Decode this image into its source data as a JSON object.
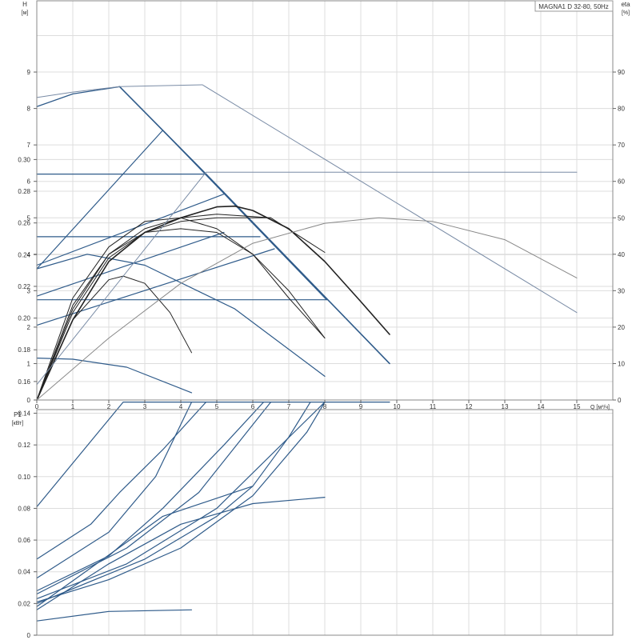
{
  "chart_data": [
    {
      "type": "line",
      "title": "MAGNA1 D 32-80, 50Hz",
      "xlabel": "Q [м³/ч]",
      "ylabel_top": "H",
      "ylabel_unit": "[м]",
      "y2label_top": "eta",
      "y2label_unit": "[%]",
      "xlim": [
        0,
        16
      ],
      "ylim": [
        0,
        10.5
      ],
      "y2lim": [
        0,
        100
      ],
      "x_ticks": [
        "0",
        "1",
        "2",
        "3",
        "4",
        "5",
        "6",
        "7",
        "8",
        "9",
        "10",
        "11",
        "12",
        "13",
        "14",
        "15"
      ],
      "y_ticks": [
        "0",
        "1",
        "2",
        "3",
        "4",
        "5",
        "6",
        "7",
        "8",
        "9"
      ],
      "y2_ticks": [
        "0",
        "10",
        "20",
        "30",
        "40",
        "50",
        "60",
        "70",
        "80",
        "90"
      ],
      "grid": true,
      "series": [
        {
          "kind": "head",
          "color": "#2f5b8a",
          "width": 1.3,
          "points": [
            [
              0,
              8.05
            ],
            [
              1,
              8.4
            ],
            [
              2.3,
              8.6
            ]
          ]
        },
        {
          "kind": "head",
          "color": "#2f5b8a",
          "width": 1.6,
          "points": [
            [
              2.3,
              8.6
            ],
            [
              4.7,
              6.2
            ],
            [
              9.8,
              1.0
            ]
          ]
        },
        {
          "kind": "head",
          "color": "#7a8ca6",
          "width": 1.0,
          "points": [
            [
              0,
              8.3
            ],
            [
              1,
              8.45
            ],
            [
              2.3,
              8.6
            ],
            [
              4.6,
              8.65
            ]
          ]
        },
        {
          "kind": "head",
          "color": "#7a8ca6",
          "width": 1.0,
          "points": [
            [
              4.6,
              8.65
            ],
            [
              15,
              2.4
            ]
          ]
        },
        {
          "kind": "head",
          "color": "#2f5b8a",
          "width": 1.2,
          "points": [
            [
              0,
              6.2
            ],
            [
              4.7,
              6.2
            ]
          ]
        },
        {
          "kind": "head",
          "color": "#2f5b8a",
          "width": 1.2,
          "points": [
            [
              0,
              3.6
            ],
            [
              3.5,
              7.4
            ]
          ]
        },
        {
          "kind": "head",
          "color": "#2f5b8a",
          "width": 1.2,
          "points": [
            [
              3.5,
              7.4
            ],
            [
              8.05,
              2.75
            ]
          ]
        },
        {
          "kind": "head",
          "color": "#2f5b8a",
          "width": 1.2,
          "points": [
            [
              0,
              4.48
            ],
            [
              6.2,
              4.48
            ]
          ]
        },
        {
          "kind": "head",
          "color": "#2f5b8a",
          "width": 1.2,
          "points": [
            [
              0,
              2.75
            ],
            [
              8.05,
              2.75
            ]
          ]
        },
        {
          "kind": "head",
          "color": "#2f5b8a",
          "width": 1.2,
          "points": [
            [
              0,
              3.7
            ],
            [
              5.2,
              5.65
            ]
          ]
        },
        {
          "kind": "head",
          "color": "#2f5b8a",
          "width": 1.2,
          "points": [
            [
              0,
              2.85
            ],
            [
              5.2,
              4.6
            ]
          ]
        },
        {
          "kind": "head",
          "color": "#2f5b8a",
          "width": 1.2,
          "points": [
            [
              0,
              2.05
            ],
            [
              6.6,
              4.15
            ]
          ]
        },
        {
          "kind": "head",
          "color": "#2f5b8a",
          "width": 1.2,
          "points": [
            [
              0,
              3.6
            ],
            [
              1.4,
              4.0
            ],
            [
              3,
              3.7
            ],
            [
              5.5,
              2.5
            ],
            [
              8,
              0.65
            ]
          ]
        },
        {
          "kind": "head",
          "color": "#2f5b8a",
          "width": 1.2,
          "points": [
            [
              0,
              1.15
            ],
            [
              1,
              1.12
            ],
            [
              2.5,
              0.9
            ],
            [
              4.3,
              0.2
            ]
          ]
        },
        {
          "kind": "eta",
          "color": "#222222",
          "width": 1.6,
          "points": [
            [
              0,
              0
            ],
            [
              1,
              22
            ],
            [
              2,
              38
            ],
            [
              3,
              46
            ],
            [
              4,
              50
            ],
            [
              5,
              53
            ],
            [
              5.5,
              53.2
            ],
            [
              6,
              52
            ],
            [
              7,
              47
            ],
            [
              8,
              38
            ],
            [
              9,
              27
            ],
            [
              9.8,
              18
            ]
          ]
        },
        {
          "kind": "eta",
          "color": "#222222",
          "width": 1.0,
          "points": [
            [
              0,
              0
            ],
            [
              1,
              24
            ],
            [
              2,
              39
            ],
            [
              3,
              46
            ],
            [
              4,
              49
            ],
            [
              5,
              50
            ],
            [
              6.5,
              50
            ],
            [
              8,
              40.5
            ]
          ]
        },
        {
          "kind": "eta",
          "color": "#222222",
          "width": 1.0,
          "points": [
            [
              0,
              0
            ],
            [
              1,
              25
            ],
            [
              2,
              40
            ],
            [
              3,
              47
            ],
            [
              4,
              50
            ],
            [
              5,
              51
            ],
            [
              6.5,
              50
            ]
          ]
        },
        {
          "kind": "eta",
          "color": "#222222",
          "width": 1.0,
          "points": [
            [
              0,
              0
            ],
            [
              1,
              26
            ],
            [
              2,
              40
            ],
            [
              3,
              46
            ],
            [
              4,
              47
            ],
            [
              5,
              46
            ],
            [
              6,
              40
            ],
            [
              7,
              30
            ],
            [
              8,
              17
            ]
          ]
        },
        {
          "kind": "eta",
          "color": "#222222",
          "width": 1.0,
          "points": [
            [
              0,
              0
            ],
            [
              1,
              28
            ],
            [
              2,
              42
            ],
            [
              3,
              49
            ],
            [
              4,
              50
            ],
            [
              5,
              47
            ],
            [
              6,
              40
            ],
            [
              7,
              28
            ],
            [
              8,
              17
            ]
          ]
        },
        {
          "kind": "eta",
          "color": "#222222",
          "width": 1.0,
          "points": [
            [
              0,
              0
            ],
            [
              1,
              22
            ],
            [
              2,
              33
            ],
            [
              2.4,
              34
            ],
            [
              3,
              32
            ],
            [
              3.7,
              24
            ],
            [
              4.3,
              13
            ]
          ]
        },
        {
          "kind": "eta",
          "color": "#888888",
          "width": 1.0,
          "points": [
            [
              0,
              0
            ],
            [
              2,
              17
            ],
            [
              4,
              32
            ],
            [
              6,
              43
            ],
            [
              8,
              48.5
            ],
            [
              9.5,
              50
            ],
            [
              11,
              49
            ],
            [
              13,
              44
            ],
            [
              15,
              33.5
            ]
          ]
        }
      ]
    },
    {
      "type": "line",
      "ylabel_top": "P1",
      "ylabel_unit": "[кВт]",
      "xlim": [
        0,
        16
      ],
      "ylim": [
        0,
        0.33
      ],
      "y_ticks": [
        "0",
        "0.02",
        "0.04",
        "0.06",
        "0.08",
        "0.10",
        "0.12",
        "0.14",
        "0.16",
        "0.18",
        "0.20",
        "0.22",
        "0.24",
        "0.26",
        "0.28",
        "0.30"
      ],
      "grid": true,
      "series": [
        {
          "color": "#7a8ca6",
          "width": 1.0,
          "points": [
            [
              0,
              0.158
            ],
            [
              4.7,
              0.292
            ],
            [
              15,
              0.292
            ]
          ]
        },
        {
          "color": "#2f5b8a",
          "width": 1.2,
          "points": [
            [
              0,
              0.081
            ],
            [
              2.4,
              0.147
            ],
            [
              9.8,
              0.147
            ]
          ]
        },
        {
          "color": "#2f5b8a",
          "width": 1.2,
          "points": [
            [
              0,
              0.048
            ],
            [
              1.5,
              0.07
            ],
            [
              2.3,
              0.09
            ],
            [
              3.5,
              0.117
            ],
            [
              4.7,
              0.147
            ]
          ]
        },
        {
          "color": "#2f5b8a",
          "width": 1.2,
          "points": [
            [
              0,
              0.036
            ],
            [
              2,
              0.065
            ],
            [
              3.3,
              0.1
            ],
            [
              4.3,
              0.147
            ]
          ]
        },
        {
          "color": "#2f5b8a",
          "width": 1.2,
          "points": [
            [
              0,
              0.028
            ],
            [
              2,
              0.05
            ],
            [
              3.5,
              0.08
            ],
            [
              5.2,
              0.12
            ],
            [
              6.3,
              0.147
            ]
          ]
        },
        {
          "color": "#2f5b8a",
          "width": 1.2,
          "points": [
            [
              0,
              0.026
            ],
            [
              2.5,
              0.055
            ],
            [
              4.5,
              0.09
            ],
            [
              6.5,
              0.147
            ]
          ]
        },
        {
          "color": "#2f5b8a",
          "width": 1.2,
          "points": [
            [
              0,
              0.023
            ],
            [
              2.5,
              0.045
            ],
            [
              5,
              0.08
            ],
            [
              8,
              0.147
            ]
          ]
        },
        {
          "color": "#2f5b8a",
          "width": 1.2,
          "points": [
            [
              0,
              0.021
            ],
            [
              2,
              0.035
            ],
            [
              4,
              0.055
            ],
            [
              6,
              0.088
            ],
            [
              7.5,
              0.128
            ],
            [
              8,
              0.147
            ]
          ]
        },
        {
          "color": "#2f5b8a",
          "width": 1.2,
          "points": [
            [
              0,
              0.02
            ],
            [
              3,
              0.048
            ],
            [
              5,
              0.075
            ],
            [
              6,
              0.094
            ],
            [
              7,
              0.125
            ],
            [
              7.6,
              0.147
            ]
          ]
        },
        {
          "color": "#2f5b8a",
          "width": 1.2,
          "points": [
            [
              0,
              0.016
            ],
            [
              2,
              0.045
            ],
            [
              4,
              0.07
            ],
            [
              6,
              0.083
            ],
            [
              8,
              0.087
            ]
          ]
        },
        {
          "color": "#2f5b8a",
          "width": 1.2,
          "points": [
            [
              0,
              0.018
            ],
            [
              3.5,
              0.075
            ],
            [
              6,
              0.094
            ]
          ]
        },
        {
          "color": "#2f5b8a",
          "width": 1.2,
          "points": [
            [
              0,
              0.009
            ],
            [
              2,
              0.015
            ],
            [
              4.3,
              0.016
            ]
          ]
        }
      ]
    }
  ]
}
